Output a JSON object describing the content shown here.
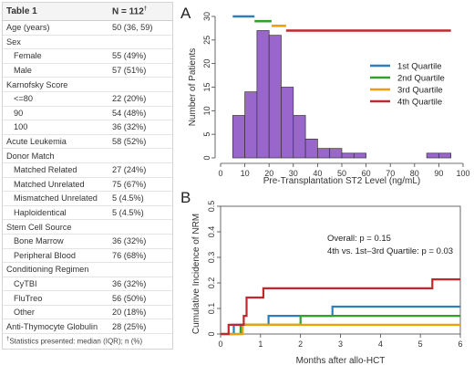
{
  "table": {
    "title": "Table 1",
    "n_label": "N = 112",
    "n_marker": "†",
    "rows": [
      {
        "label": "Age (years)",
        "value": "50 (36, 59)",
        "indent": false
      },
      {
        "label": "Sex",
        "value": "",
        "indent": false
      },
      {
        "label": "Female",
        "value": "55 (49%)",
        "indent": true
      },
      {
        "label": "Male",
        "value": "57 (51%)",
        "indent": true
      },
      {
        "label": "Karnofsky Score",
        "value": "",
        "indent": false
      },
      {
        "label": "<=80",
        "value": "22 (20%)",
        "indent": true
      },
      {
        "label": "90",
        "value": "54 (48%)",
        "indent": true
      },
      {
        "label": "100",
        "value": "36 (32%)",
        "indent": true
      },
      {
        "label": "Acute Leukemia",
        "value": "58 (52%)",
        "indent": false
      },
      {
        "label": "Donor Match",
        "value": "",
        "indent": false
      },
      {
        "label": "Matched Related",
        "value": "27 (24%)",
        "indent": true
      },
      {
        "label": "Matched Unrelated",
        "value": "75 (67%)",
        "indent": true
      },
      {
        "label": "Mismatched Unrelated",
        "value": "5 (4.5%)",
        "indent": true
      },
      {
        "label": "Haploidentical",
        "value": "5 (4.5%)",
        "indent": true
      },
      {
        "label": "Stem Cell Source",
        "value": "",
        "indent": false
      },
      {
        "label": "Bone Marrow",
        "value": "36 (32%)",
        "indent": true
      },
      {
        "label": "Peripheral Blood",
        "value": "76 (68%)",
        "indent": true
      },
      {
        "label": "Conditioning Regimen",
        "value": "",
        "indent": false
      },
      {
        "label": "CyTBI",
        "value": "36 (32%)",
        "indent": true
      },
      {
        "label": "FluTreo",
        "value": "56 (50%)",
        "indent": true
      },
      {
        "label": "Other",
        "value": "20 (18%)",
        "indent": true
      },
      {
        "label": "Anti-Thymocyte Globulin",
        "value": "28 (25%)",
        "indent": false
      }
    ],
    "footnote_marker": "†",
    "footnote": "Statistics presented: median (IQR); n (%)"
  },
  "chart_data": [
    {
      "type": "bar",
      "panel_label": "A",
      "xlabel": "Pre-Transplantation ST2 Level (ng/mL)",
      "ylabel": "Number of Patients",
      "xlim": [
        0,
        100
      ],
      "ylim": [
        0,
        30
      ],
      "xticks": [
        0,
        10,
        20,
        30,
        40,
        50,
        60,
        70,
        80,
        90,
        100
      ],
      "yticks": [
        0,
        5,
        10,
        15,
        20,
        25,
        30
      ],
      "bin_width": 5,
      "bins": [
        {
          "x0": 5,
          "x1": 10,
          "count": 9
        },
        {
          "x0": 10,
          "x1": 15,
          "count": 14
        },
        {
          "x0": 15,
          "x1": 20,
          "count": 27
        },
        {
          "x0": 20,
          "x1": 25,
          "count": 26
        },
        {
          "x0": 25,
          "x1": 30,
          "count": 15
        },
        {
          "x0": 30,
          "x1": 35,
          "count": 9
        },
        {
          "x0": 35,
          "x1": 40,
          "count": 4
        },
        {
          "x0": 40,
          "x1": 45,
          "count": 2
        },
        {
          "x0": 45,
          "x1": 50,
          "count": 2
        },
        {
          "x0": 50,
          "x1": 55,
          "count": 1
        },
        {
          "x0": 55,
          "x1": 60,
          "count": 1
        },
        {
          "x0": 85,
          "x1": 90,
          "count": 1
        },
        {
          "x0": 90,
          "x1": 95,
          "count": 1
        }
      ],
      "bar_color": "#9966cc",
      "quartile_ranges": [
        {
          "name": "1st Quartile",
          "color": "#2e7fb8",
          "x0": 5,
          "x1": 14,
          "y": 30
        },
        {
          "name": "2nd Quartile",
          "color": "#33a02c",
          "x0": 14,
          "x1": 21,
          "y": 29
        },
        {
          "name": "3rd Quartile",
          "color": "#f39c12",
          "x0": 21,
          "x1": 27,
          "y": 28
        },
        {
          "name": "4th Quartile",
          "color": "#c0282d",
          "x0": 27,
          "x1": 95,
          "y": 27
        }
      ],
      "legend_position": "right"
    },
    {
      "type": "line",
      "panel_label": "B",
      "xlabel": "Months after allo-HCT",
      "ylabel": "Cumulative Incidence of NRM",
      "xlim": [
        0,
        6
      ],
      "ylim": [
        0,
        0.5
      ],
      "xticks": [
        0,
        1,
        2,
        3,
        4,
        5,
        6
      ],
      "yticks": [
        0,
        0.1,
        0.2,
        0.3,
        0.4,
        0.5
      ],
      "ytick_labels": [
        "0",
        "0.1",
        "0.2",
        "0.3",
        "0.4",
        "0.5"
      ],
      "annotations": [
        "Overall: p = 0.15",
        "4th vs. 1st–3rd Quartile: p = 0.03"
      ],
      "series": [
        {
          "color": "#2e7fb8",
          "steps": [
            [
              0,
              0
            ],
            [
              0.33,
              0
            ],
            [
              0.33,
              0.036
            ],
            [
              1.2,
              0.036
            ],
            [
              1.2,
              0.071
            ],
            [
              2.8,
              0.071
            ],
            [
              2.8,
              0.107
            ],
            [
              6,
              0.107
            ]
          ]
        },
        {
          "color": "#33a02c",
          "steps": [
            [
              0,
              0
            ],
            [
              0.5,
              0
            ],
            [
              0.5,
              0.036
            ],
            [
              2,
              0.036
            ],
            [
              2,
              0.071
            ],
            [
              6,
              0.071
            ]
          ]
        },
        {
          "color": "#f39c12",
          "steps": [
            [
              0,
              0
            ],
            [
              0.55,
              0
            ],
            [
              0.55,
              0.036
            ],
            [
              6,
              0.036
            ]
          ]
        },
        {
          "color": "#c0282d",
          "steps": [
            [
              0,
              0
            ],
            [
              0.2,
              0
            ],
            [
              0.2,
              0.036
            ],
            [
              0.58,
              0.036
            ],
            [
              0.58,
              0.071
            ],
            [
              0.65,
              0.071
            ],
            [
              0.65,
              0.143
            ],
            [
              1.07,
              0.143
            ],
            [
              1.07,
              0.179
            ],
            [
              5.3,
              0.179
            ],
            [
              5.3,
              0.214
            ],
            [
              6,
              0.214
            ]
          ]
        }
      ]
    }
  ]
}
